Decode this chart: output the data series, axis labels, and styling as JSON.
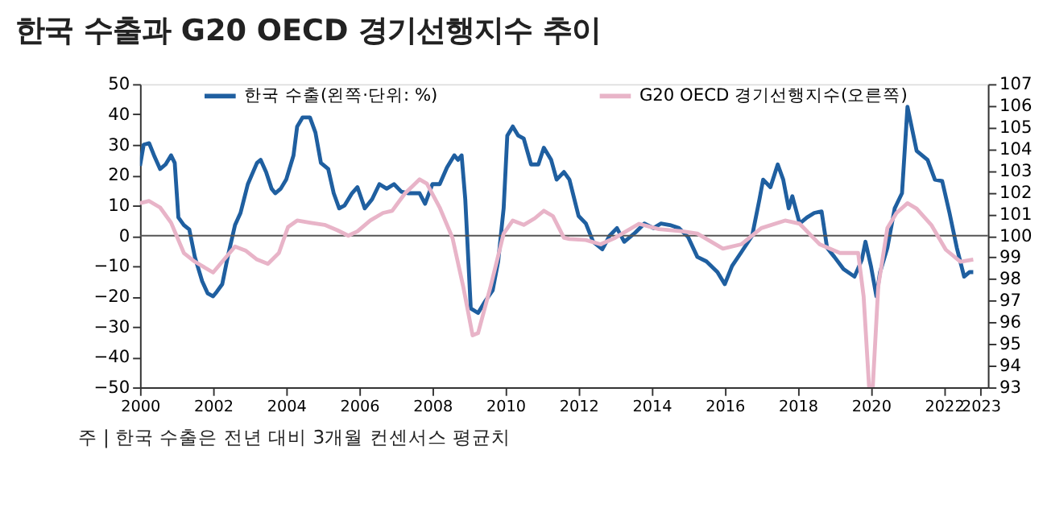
{
  "chart_data": {
    "type": "line",
    "title": "한국 수출과 G20 OECD 경기선행지수 추이",
    "annotations": [
      "주 | 한국 수출은 전년 대비 3개월 컨센서스 평균치"
    ],
    "xlim": [
      2000,
      2023.2
    ],
    "xticks": [
      2000,
      2002,
      2004,
      2006,
      2008,
      2010,
      2012,
      2014,
      2016,
      2018,
      2020,
      2022,
      2023
    ],
    "ylim": [
      -50,
      50
    ],
    "yticks": [
      -50,
      -40,
      -30,
      -20,
      -10,
      0,
      10,
      20,
      30,
      40,
      50
    ],
    "y2lim": [
      93,
      107
    ],
    "y2ticks": [
      93,
      94,
      95,
      96,
      97,
      98,
      99,
      100,
      101,
      102,
      103,
      104,
      105,
      106,
      107
    ],
    "legend": "top",
    "grid": false,
    "ref_lines": [
      {
        "axis": "y",
        "value": 0,
        "color": "#555555"
      }
    ],
    "series": [
      {
        "name": "한국 수출(왼쪽·단위: %)",
        "color": "#1f5fa0",
        "x": [
          2000.0,
          2000.1,
          2000.25,
          2000.4,
          2000.55,
          2000.7,
          2000.85,
          2000.95,
          2001.05,
          2001.2,
          2001.35,
          2001.5,
          2001.7,
          2001.85,
          2002.0,
          2002.1,
          2002.25,
          2002.4,
          2002.6,
          2002.75,
          2002.95,
          2003.2,
          2003.3,
          2003.45,
          2003.6,
          2003.7,
          2003.85,
          2004.0,
          2004.2,
          2004.3,
          2004.45,
          2004.65,
          2004.8,
          2004.95,
          2005.15,
          2005.3,
          2005.45,
          2005.6,
          2005.8,
          2005.95,
          2006.15,
          2006.35,
          2006.55,
          2006.75,
          2006.95,
          2007.15,
          2007.35,
          2007.65,
          2007.8,
          2008.0,
          2008.2,
          2008.4,
          2008.6,
          2008.7,
          2008.8,
          2008.9,
          2009.05,
          2009.25,
          2009.45,
          2009.65,
          2009.8,
          2009.95,
          2010.05,
          2010.2,
          2010.35,
          2010.5,
          2010.7,
          2010.9,
          2011.05,
          2011.25,
          2011.4,
          2011.6,
          2011.75,
          2012.0,
          2012.2,
          2012.4,
          2012.65,
          2012.85,
          2013.05,
          2013.25,
          2013.55,
          2013.8,
          2014.05,
          2014.25,
          2014.5,
          2014.75,
          2015.0,
          2015.25,
          2015.5,
          2015.8,
          2016.0,
          2016.2,
          2016.45,
          2016.75,
          2016.95,
          2017.05,
          2017.25,
          2017.45,
          2017.6,
          2017.75,
          2017.85,
          2018.05,
          2018.25,
          2018.45,
          2018.65,
          2018.8,
          2019.0,
          2019.25,
          2019.55,
          2019.75,
          2019.85,
          2020.0,
          2020.15,
          2020.25,
          2020.45,
          2020.65,
          2020.85,
          2021.0,
          2021.25,
          2021.55,
          2021.75,
          2021.95,
          2022.15,
          2022.35,
          2022.55,
          2022.7,
          2022.8
        ],
        "values": [
          23,
          30,
          30.5,
          26,
          22,
          23.5,
          26.5,
          24,
          6,
          3.5,
          2,
          -7,
          -15,
          -19,
          -20,
          -18.5,
          -16,
          -7,
          3.5,
          7.5,
          17,
          24,
          25,
          21,
          15.5,
          14,
          15.5,
          18.5,
          26.5,
          36,
          39,
          39,
          34,
          24,
          22,
          14,
          9,
          10,
          14,
          16,
          9,
          12,
          17,
          15.5,
          17,
          14.5,
          14,
          14,
          10.5,
          17,
          17,
          22.5,
          26.5,
          25,
          26.5,
          12,
          -24,
          -25.5,
          -21.5,
          -18,
          -8.5,
          9,
          33,
          36,
          33,
          32,
          23.5,
          23.5,
          29,
          25,
          18.5,
          21,
          18.5,
          6.5,
          4,
          -2,
          -4.5,
          0,
          2.5,
          -2,
          1,
          4,
          2.5,
          4,
          3.5,
          2.5,
          -0.5,
          -7,
          -8.5,
          -12,
          -16,
          -10,
          -5.5,
          0,
          12,
          18.5,
          16,
          23.5,
          18.5,
          9,
          13,
          4,
          6,
          7.5,
          8,
          -4,
          -7,
          -11,
          -13.5,
          -8,
          -2,
          -10,
          -20,
          -12,
          -4,
          9,
          14,
          42.5,
          28,
          25,
          18.5,
          18,
          7.5,
          -4,
          -13.5,
          -12,
          -12
        ]
      },
      {
        "name": "G20 OECD 경기선행지수(오른쪽)",
        "color": "#e8b4c8",
        "axis": "y2",
        "x": [
          2000.0,
          2000.25,
          2000.55,
          2000.85,
          2001.2,
          2001.5,
          2002.0,
          2002.25,
          2002.6,
          2002.9,
          2003.2,
          2003.5,
          2003.8,
          2004.05,
          2004.3,
          2004.65,
          2005.05,
          2005.4,
          2005.7,
          2005.95,
          2006.3,
          2006.65,
          2006.9,
          2007.25,
          2007.65,
          2007.85,
          2008.2,
          2008.55,
          2008.85,
          2009.1,
          2009.25,
          2009.6,
          2009.95,
          2010.2,
          2010.5,
          2010.8,
          2011.05,
          2011.3,
          2011.6,
          2011.75,
          2012.2,
          2012.6,
          2013.0,
          2013.65,
          2014.2,
          2014.85,
          2015.25,
          2015.95,
          2016.45,
          2017.0,
          2017.65,
          2018.05,
          2018.6,
          2019.15,
          2019.65,
          2019.8,
          2019.95,
          2020.05,
          2020.2,
          2020.45,
          2020.7,
          2021.0,
          2021.25,
          2021.65,
          2022.05,
          2022.45,
          2022.8
        ],
        "values": [
          101.5,
          101.6,
          101.3,
          100.6,
          99.2,
          98.8,
          98.3,
          98.8,
          99.5,
          99.3,
          98.9,
          98.7,
          99.2,
          100.4,
          100.7,
          100.6,
          100.5,
          100.25,
          100.0,
          100.2,
          100.7,
          101.05,
          101.15,
          101.95,
          102.6,
          102.4,
          101.3,
          99.9,
          97.6,
          95.4,
          95.5,
          97.7,
          100.1,
          100.7,
          100.5,
          100.8,
          101.15,
          100.9,
          99.9,
          99.85,
          99.8,
          99.6,
          99.9,
          100.55,
          100.3,
          100.2,
          100.1,
          99.4,
          99.6,
          100.35,
          100.7,
          100.55,
          99.6,
          99.2,
          99.2,
          97.2,
          93,
          93,
          97.65,
          100.35,
          101.05,
          101.5,
          101.25,
          100.5,
          99.35,
          98.8,
          98.9
        ]
      }
    ]
  }
}
